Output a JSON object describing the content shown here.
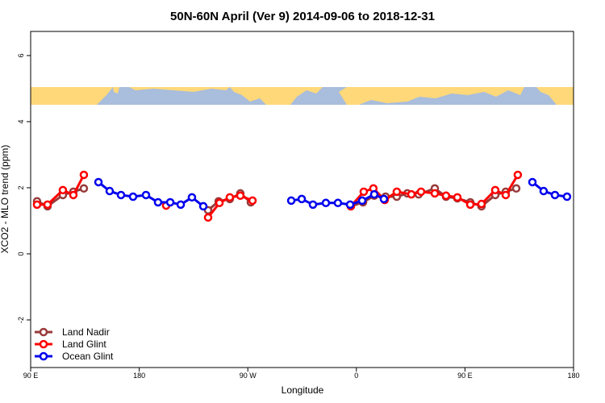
{
  "chart_data": {
    "type": "line",
    "title": "50N-60N April (Ver 9)   2014-09-06 to 2018-12-31",
    "x_label": "Longitude",
    "y_label": "XCO2 - MLO trend (ppm)",
    "xlim": [
      90,
      540
    ],
    "ylim": [
      -3.44,
      6.73
    ],
    "xticks": [
      {
        "value": 90,
        "label": "90 E"
      },
      {
        "value": 180,
        "label": "180"
      },
      {
        "value": 270,
        "label": "90 W"
      },
      {
        "value": 360,
        "label": "0"
      },
      {
        "value": 450,
        "label": "90 E"
      },
      {
        "value": 540,
        "label": "180"
      }
    ],
    "yticks": [
      -2,
      0,
      2,
      4,
      6
    ],
    "legend": "bottom-left",
    "series": [
      {
        "name": "Land Nadir",
        "color": "#993a3a",
        "x": [
          95.3,
          104.0,
          116.7,
          125.4,
          134.1,
          null,
          237.1,
          245.8,
          255.1,
          263.8,
          272.5,
          null,
          355.4,
          365.5,
          374.8,
          384.2,
          393.5,
          402.2,
          411.6,
          425.0,
          434.3,
          443.7,
          454.4,
          463.7,
          475.1,
          483.8,
          492.5
        ],
        "values": [
          1.59,
          1.44,
          1.78,
          1.88,
          1.98,
          null,
          1.32,
          1.59,
          1.66,
          1.83,
          1.56,
          null,
          1.44,
          1.56,
          1.76,
          1.73,
          1.73,
          1.83,
          1.8,
          1.98,
          1.73,
          1.68,
          1.56,
          1.44,
          1.78,
          1.88,
          1.98
        ]
      },
      {
        "name": "Land Glint",
        "color": "#ff0000",
        "x": [
          95.3,
          104.0,
          116.7,
          125.4,
          134.1,
          null,
          202.3,
          null,
          237.1,
          246.5,
          255.1,
          263.8,
          273.9,
          null,
          355.4,
          366.1,
          374.1,
          383.5,
          393.5,
          405.6,
          413.6,
          425.0,
          434.3,
          443.7,
          454.4,
          463.7,
          475.1,
          483.8,
          493.8
        ],
        "values": [
          1.49,
          1.49,
          1.93,
          1.78,
          2.39,
          null,
          1.46,
          null,
          1.1,
          1.54,
          1.71,
          1.76,
          1.61,
          null,
          1.44,
          1.88,
          1.98,
          1.63,
          1.88,
          1.8,
          1.88,
          1.83,
          1.76,
          1.71,
          1.49,
          1.51,
          1.93,
          1.78,
          2.39
        ]
      },
      {
        "name": "Ocean Glint",
        "color": "#0000ee",
        "x": [
          146.2,
          155.5,
          164.9,
          174.9,
          185.6,
          195.6,
          205.7,
          214.4,
          223.7,
          233.1,
          null,
          306.0,
          314.7,
          324.0,
          334.7,
          344.7,
          354.8,
          364.8,
          374.8,
          382.8,
          null,
          505.9,
          515.2,
          524.6,
          534.6
        ],
        "values": [
          2.17,
          1.9,
          1.78,
          1.73,
          1.78,
          1.56,
          1.56,
          1.49,
          1.71,
          1.44,
          null,
          1.61,
          1.66,
          1.49,
          1.54,
          1.54,
          1.49,
          1.61,
          1.8,
          1.66,
          null,
          2.17,
          1.9,
          1.78,
          1.73
        ]
      }
    ]
  }
}
